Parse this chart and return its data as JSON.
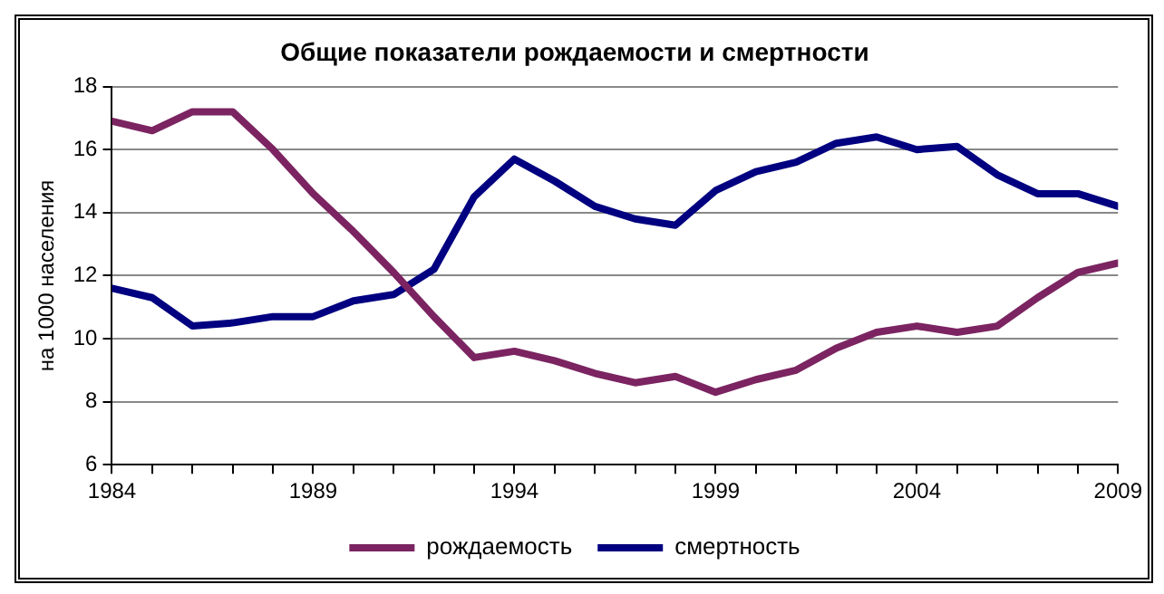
{
  "chart_data": {
    "type": "line",
    "title": "Общие показатели рождаемости и смертности",
    "ylabel": "на 1000 населения",
    "x": [
      1984,
      1985,
      1986,
      1987,
      1988,
      1989,
      1990,
      1991,
      1992,
      1993,
      1994,
      1995,
      1996,
      1997,
      1998,
      1999,
      2000,
      2001,
      2002,
      2003,
      2004,
      2005,
      2006,
      2007,
      2008,
      2009
    ],
    "series": [
      {
        "name": "рождаемость",
        "color": "#7b2461",
        "values": [
          16.9,
          16.6,
          17.2,
          17.2,
          16.0,
          14.6,
          13.4,
          12.1,
          10.7,
          9.4,
          9.6,
          9.3,
          8.9,
          8.6,
          8.8,
          8.3,
          8.7,
          9.0,
          9.7,
          10.2,
          10.4,
          10.2,
          10.4,
          11.3,
          12.1,
          12.4
        ]
      },
      {
        "name": "смертность",
        "color": "#000080",
        "values": [
          11.6,
          11.3,
          10.4,
          10.5,
          10.7,
          10.7,
          11.2,
          11.4,
          12.2,
          14.5,
          15.7,
          15.0,
          14.2,
          13.8,
          13.6,
          14.7,
          15.3,
          15.6,
          16.2,
          16.4,
          16.0,
          16.1,
          15.2,
          14.6,
          14.6,
          14.2
        ]
      }
    ],
    "xlim": [
      1984,
      2009
    ],
    "xticks": [
      1984,
      {
        "value": 1985,
        "label": null
      },
      {
        "value": 1986,
        "label": null
      },
      {
        "value": 1987,
        "label": null
      },
      {
        "value": 1988,
        "label": null
      },
      1989,
      {
        "value": 1990,
        "label": null
      },
      {
        "value": 1991,
        "label": null
      },
      {
        "value": 1992,
        "label": null
      },
      {
        "value": 1993,
        "label": null
      },
      1994,
      {
        "value": 1995,
        "label": null
      },
      {
        "value": 1996,
        "label": null
      },
      {
        "value": 1997,
        "label": null
      },
      {
        "value": 1998,
        "label": null
      },
      1999,
      {
        "value": 2000,
        "label": null
      },
      {
        "value": 2001,
        "label": null
      },
      {
        "value": 2002,
        "label": null
      },
      {
        "value": 2003,
        "label": null
      },
      2004,
      {
        "value": 2005,
        "label": null
      },
      {
        "value": 2006,
        "label": null
      },
      {
        "value": 2007,
        "label": null
      },
      {
        "value": 2008,
        "label": null
      },
      2009
    ],
    "ylim": [
      6,
      18
    ],
    "yticks": [
      6,
      8,
      10,
      12,
      14,
      16,
      18
    ],
    "grid": "y",
    "legend": "bottom",
    "marker": "none",
    "line_style": "solid"
  }
}
